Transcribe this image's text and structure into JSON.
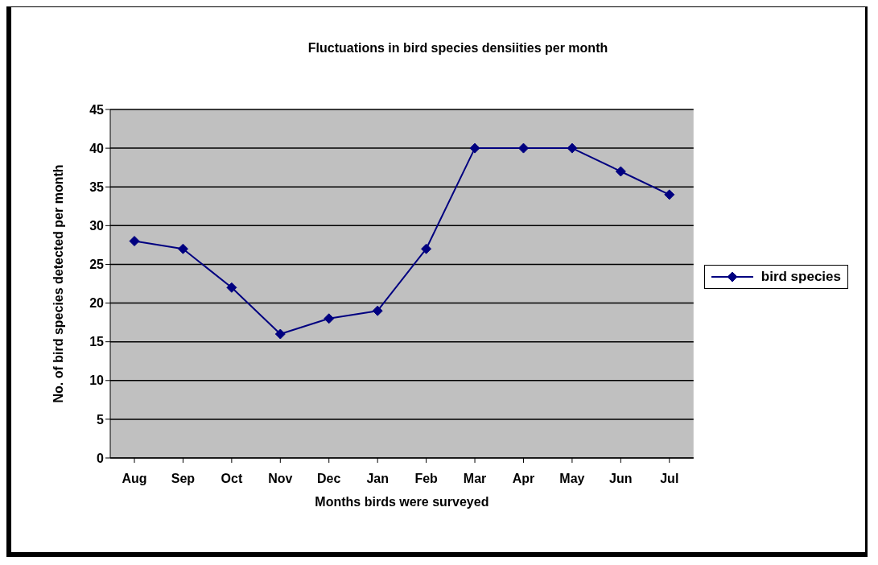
{
  "chart_data": {
    "type": "line",
    "title": "Fluctuations in bird species densiities per month",
    "xlabel": "Months birds were surveyed",
    "ylabel": "No. of bird species detected per month",
    "categories": [
      "Aug",
      "Sep",
      "Oct",
      "Nov",
      "Dec",
      "Jan",
      "Feb",
      "Mar",
      "Apr",
      "May",
      "Jun",
      "Jul"
    ],
    "series": [
      {
        "name": "bird species",
        "color": "#000080",
        "values": [
          28,
          27,
          22,
          16,
          18,
          19,
          27,
          40,
          40,
          40,
          37,
          34
        ]
      }
    ],
    "ylim": [
      0,
      45
    ],
    "yticks": [
      0,
      5,
      10,
      15,
      20,
      25,
      30,
      35,
      40,
      45
    ],
    "grid": "y",
    "legend": "right",
    "marker": "diamond",
    "line_style": "solid"
  }
}
